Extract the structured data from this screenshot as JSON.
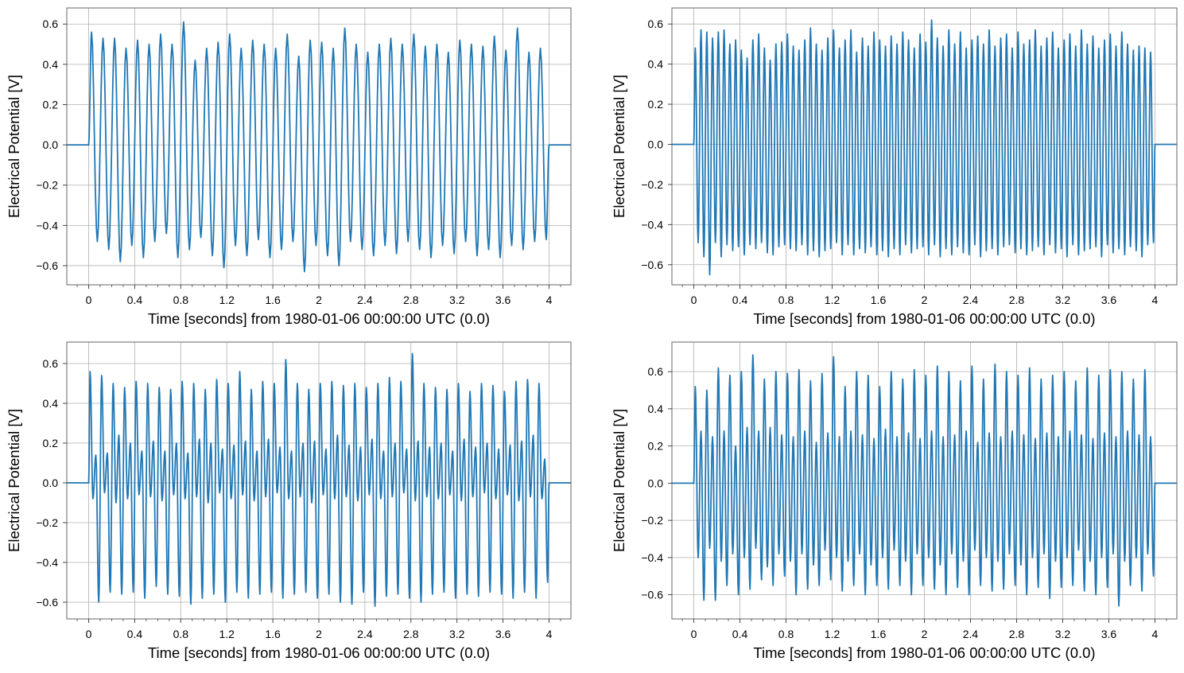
{
  "chart_data": [
    {
      "type": "line",
      "xlabel": "Time [seconds] from 1980-01-06 00:00:00 UTC (0.0)",
      "ylabel": "Electrical Potential [V]",
      "xlim": [
        -0.19,
        4.19
      ],
      "ylim": [
        -0.695,
        0.68
      ],
      "grid": true,
      "line_color": "#1f77b4",
      "xticks": [
        0,
        0.4,
        0.8,
        1.2,
        1.6,
        2,
        2.4,
        2.8,
        3.2,
        3.6,
        4
      ],
      "xtick_labels": [
        "0",
        "0.4",
        "0.8",
        "1.2",
        "1.6",
        "2",
        "2.4",
        "2.8",
        "3.2",
        "3.6",
        "4"
      ],
      "yticks": [
        -0.6,
        -0.4,
        -0.2,
        0,
        0.2,
        0.4,
        0.6
      ],
      "ytick_labels": [
        "−0.6",
        "−0.4",
        "−0.2",
        "0.0",
        "0.2",
        "0.4",
        "0.6"
      ],
      "signal": {
        "baseline": 0,
        "start": 0,
        "end": 4,
        "t0": 0.025,
        "dt": 0.05,
        "extrema": [
          0.56,
          -0.48,
          0.53,
          -0.52,
          0.53,
          -0.58,
          0.48,
          -0.5,
          0.52,
          -0.56,
          0.5,
          -0.48,
          0.55,
          -0.44,
          0.5,
          -0.56,
          0.61,
          -0.52,
          0.42,
          -0.46,
          0.48,
          -0.55,
          0.51,
          -0.61,
          0.55,
          -0.5,
          0.48,
          -0.55,
          0.52,
          -0.47,
          0.5,
          -0.56,
          0.48,
          -0.52,
          0.55,
          -0.48,
          0.44,
          -0.63,
          0.52,
          -0.5,
          0.51,
          -0.55,
          0.48,
          -0.6,
          0.58,
          -0.48,
          0.5,
          -0.52,
          0.46,
          -0.55,
          0.5,
          -0.5,
          0.53,
          -0.54,
          0.5,
          -0.48,
          0.55,
          -0.52,
          0.49,
          -0.56,
          0.5,
          -0.5,
          0.46,
          -0.54,
          0.52,
          -0.48,
          0.5,
          -0.55,
          0.49,
          -0.52,
          0.54,
          -0.56,
          0.47,
          -0.5,
          0.58,
          -0.52,
          0.46,
          -0.48,
          0.48,
          -0.47
        ]
      }
    },
    {
      "type": "line",
      "xlabel": "Time [seconds] from 1980-01-06 00:00:00 UTC (0.0)",
      "ylabel": "Electrical Potential [V]",
      "xlim": [
        -0.19,
        4.19
      ],
      "ylim": [
        -0.7,
        0.68
      ],
      "grid": true,
      "line_color": "#1f77b4",
      "xticks": [
        0,
        0.4,
        0.8,
        1.2,
        1.6,
        2,
        2.4,
        2.8,
        3.2,
        3.6,
        4
      ],
      "xtick_labels": [
        "0",
        "0.4",
        "0.8",
        "1.2",
        "1.6",
        "2",
        "2.4",
        "2.8",
        "3.2",
        "3.6",
        "4"
      ],
      "yticks": [
        -0.6,
        -0.4,
        -0.2,
        0,
        0.2,
        0.4,
        0.6
      ],
      "ytick_labels": [
        "−0.6",
        "−0.4",
        "−0.2",
        "0.0",
        "0.2",
        "0.4",
        "0.6"
      ],
      "signal": {
        "baseline": 0,
        "start": 0,
        "end": 4,
        "t0": 0.0125,
        "dt": 0.025,
        "extrema": [
          0.48,
          -0.49,
          0.57,
          -0.56,
          0.56,
          -0.65,
          0.53,
          -0.49,
          0.56,
          -0.56,
          0.57,
          -0.5,
          0.5,
          -0.53,
          0.52,
          -0.51,
          0.47,
          -0.55,
          0.43,
          -0.5,
          0.52,
          -0.52,
          0.55,
          -0.49,
          0.48,
          -0.54,
          0.42,
          -0.55,
          0.5,
          -0.51,
          0.51,
          -0.5,
          0.55,
          -0.52,
          0.49,
          -0.53,
          0.47,
          -0.5,
          0.52,
          -0.55,
          0.58,
          -0.53,
          0.5,
          -0.56,
          0.47,
          -0.53,
          0.53,
          -0.52,
          0.57,
          -0.49,
          0.48,
          -0.55,
          0.52,
          -0.5,
          0.57,
          -0.55,
          0.46,
          -0.52,
          0.53,
          -0.54,
          0.49,
          -0.51,
          0.56,
          -0.55,
          0.52,
          -0.53,
          0.49,
          -0.56,
          0.54,
          -0.52,
          0.5,
          -0.55,
          0.56,
          -0.5,
          0.52,
          -0.54,
          0.48,
          -0.52,
          0.55,
          -0.51,
          0.51,
          -0.55,
          0.62,
          -0.5,
          0.53,
          -0.56,
          0.49,
          -0.52,
          0.57,
          -0.55,
          0.5,
          -0.51,
          0.56,
          -0.54,
          0.48,
          -0.55,
          0.52,
          -0.5,
          0.54,
          -0.56,
          0.5,
          -0.53,
          0.57,
          -0.52,
          0.49,
          -0.55,
          0.53,
          -0.51,
          0.55,
          -0.5,
          0.48,
          -0.54,
          0.56,
          -0.52,
          0.5,
          -0.55,
          0.52,
          -0.53,
          0.57,
          -0.51,
          0.49,
          -0.55,
          0.53,
          -0.5,
          0.56,
          -0.54,
          0.48,
          -0.52,
          0.52,
          -0.56,
          0.55,
          -0.5,
          0.49,
          -0.55,
          0.57,
          -0.53,
          0.5,
          -0.52,
          0.54,
          -0.51,
          0.48,
          -0.56,
          0.52,
          -0.5,
          0.55,
          -0.54,
          0.49,
          -0.52,
          0.56,
          -0.55,
          0.5,
          -0.51,
          0.47,
          -0.53,
          0.49,
          -0.56,
          0.48,
          -0.5,
          0.46,
          -0.49
        ]
      }
    },
    {
      "type": "line",
      "xlabel": "Time [seconds] from 1980-01-06 00:00:00 UTC (0.0)",
      "ylabel": "Electrical Potential [V]",
      "xlim": [
        -0.19,
        4.19
      ],
      "ylim": [
        -0.684,
        0.708
      ],
      "grid": true,
      "line_color": "#1f77b4",
      "xticks": [
        0,
        0.4,
        0.8,
        1.2,
        1.6,
        2,
        2.4,
        2.8,
        3.2,
        3.6,
        4
      ],
      "xtick_labels": [
        "0",
        "0.4",
        "0.8",
        "1.2",
        "1.6",
        "2",
        "2.4",
        "2.8",
        "3.2",
        "3.6",
        "4"
      ],
      "yticks": [
        -0.6,
        -0.4,
        -0.2,
        0,
        0.2,
        0.4,
        0.6
      ],
      "ytick_labels": [
        "−0.6",
        "−0.4",
        "−0.2",
        "0.0",
        "0.2",
        "0.4",
        "0.6"
      ],
      "signal": {
        "baseline": 0,
        "start": 0,
        "end": 4,
        "t0": 0.0125,
        "dt": 0.025,
        "extrema": [
          0.56,
          -0.08,
          0.14,
          -0.6,
          0.54,
          -0.05,
          0.15,
          -0.55,
          0.5,
          -0.1,
          0.24,
          -0.56,
          0.48,
          -0.08,
          0.2,
          -0.55,
          0.51,
          -0.06,
          0.16,
          -0.58,
          0.5,
          -0.07,
          0.21,
          -0.52,
          0.48,
          -0.09,
          0.16,
          -0.56,
          0.47,
          -0.06,
          0.2,
          -0.57,
          0.51,
          -0.08,
          0.15,
          -0.61,
          0.5,
          -0.07,
          0.22,
          -0.58,
          0.47,
          -0.1,
          0.2,
          -0.56,
          0.52,
          -0.05,
          0.17,
          -0.6,
          0.5,
          -0.08,
          0.19,
          -0.55,
          0.56,
          -0.06,
          0.21,
          -0.58,
          0.47,
          -0.09,
          0.16,
          -0.56,
          0.51,
          -0.07,
          0.22,
          -0.55,
          0.5,
          -0.05,
          0.18,
          -0.58,
          0.62,
          -0.08,
          0.16,
          -0.56,
          0.5,
          -0.07,
          0.2,
          -0.55,
          0.47,
          -0.1,
          0.21,
          -0.58,
          0.5,
          -0.06,
          0.17,
          -0.56,
          0.51,
          -0.08,
          0.24,
          -0.6,
          0.49,
          -0.07,
          0.19,
          -0.61,
          0.5,
          -0.09,
          0.18,
          -0.55,
          0.48,
          -0.06,
          0.22,
          -0.62,
          0.5,
          -0.08,
          0.16,
          -0.57,
          0.53,
          -0.07,
          0.2,
          -0.56,
          0.51,
          -0.05,
          0.17,
          -0.58,
          0.65,
          -0.09,
          0.21,
          -0.6,
          0.5,
          -0.07,
          0.18,
          -0.56,
          0.48,
          -0.08,
          0.2,
          -0.55,
          0.47,
          -0.06,
          0.16,
          -0.58,
          0.5,
          -0.09,
          0.22,
          -0.56,
          0.46,
          -0.07,
          0.18,
          -0.57,
          0.5,
          -0.05,
          0.2,
          -0.55,
          0.49,
          -0.08,
          0.17,
          -0.56,
          0.46,
          -0.06,
          0.19,
          -0.58,
          0.51,
          -0.09,
          0.21,
          -0.55,
          0.52,
          -0.07,
          0.24,
          -0.58,
          0.5,
          -0.08,
          0.12,
          -0.5
        ]
      }
    },
    {
      "type": "line",
      "xlabel": "Time [seconds] from 1980-01-06 00:00:00 UTC (0.0)",
      "ylabel": "Electrical Potential [V]",
      "xlim": [
        -0.19,
        4.19
      ],
      "ylim": [
        -0.73,
        0.759
      ],
      "grid": true,
      "line_color": "#1f77b4",
      "xticks": [
        0,
        0.4,
        0.8,
        1.2,
        1.6,
        2,
        2.4,
        2.8,
        3.2,
        3.6,
        4
      ],
      "xtick_labels": [
        "0",
        "0.4",
        "0.8",
        "1.2",
        "1.6",
        "2",
        "2.4",
        "2.8",
        "3.2",
        "3.6",
        "4"
      ],
      "yticks": [
        -0.6,
        -0.4,
        -0.2,
        0,
        0.2,
        0.4,
        0.6
      ],
      "ytick_labels": [
        "−0.6",
        "−0.4",
        "−0.2",
        "0.0",
        "0.2",
        "0.4",
        "0.6"
      ],
      "signal": {
        "baseline": 0,
        "start": 0,
        "end": 4,
        "t0": 0.0125,
        "dt": 0.025,
        "extrema": [
          0.52,
          -0.4,
          0.28,
          -0.63,
          0.5,
          -0.35,
          0.25,
          -0.63,
          0.62,
          -0.42,
          0.28,
          -0.55,
          0.58,
          -0.38,
          0.2,
          -0.6,
          0.6,
          -0.4,
          0.3,
          -0.57,
          0.69,
          -0.35,
          0.28,
          -0.52,
          0.56,
          -0.45,
          0.3,
          -0.55,
          0.6,
          -0.38,
          0.26,
          -0.5,
          0.59,
          -0.42,
          0.25,
          -0.6,
          0.61,
          -0.38,
          0.28,
          -0.57,
          0.55,
          -0.44,
          0.22,
          -0.55,
          0.59,
          -0.36,
          0.27,
          -0.52,
          0.68,
          -0.4,
          0.25,
          -0.58,
          0.52,
          -0.42,
          0.28,
          -0.55,
          0.6,
          -0.38,
          0.26,
          -0.6,
          0.58,
          -0.44,
          0.24,
          -0.55,
          0.52,
          -0.4,
          0.29,
          -0.57,
          0.6,
          -0.36,
          0.25,
          -0.55,
          0.56,
          -0.42,
          0.27,
          -0.6,
          0.61,
          -0.38,
          0.24,
          -0.55,
          0.58,
          -0.4,
          0.28,
          -0.57,
          0.63,
          -0.44,
          0.25,
          -0.6,
          0.6,
          -0.38,
          0.26,
          -0.56,
          0.55,
          -0.42,
          0.28,
          -0.6,
          0.63,
          -0.36,
          0.22,
          -0.55,
          0.56,
          -0.4,
          0.27,
          -0.58,
          0.64,
          -0.42,
          0.25,
          -0.57,
          0.6,
          -0.38,
          0.28,
          -0.55,
          0.58,
          -0.44,
          0.26,
          -0.6,
          0.62,
          -0.4,
          0.24,
          -0.56,
          0.56,
          -0.38,
          0.27,
          -0.62,
          0.58,
          -0.42,
          0.25,
          -0.56,
          0.6,
          -0.4,
          0.28,
          -0.55,
          0.55,
          -0.36,
          0.26,
          -0.58,
          0.62,
          -0.42,
          0.24,
          -0.6,
          0.58,
          -0.4,
          0.27,
          -0.56,
          0.61,
          -0.38,
          0.25,
          -0.66,
          0.6,
          -0.42,
          0.28,
          -0.55,
          0.56,
          -0.4,
          0.26,
          -0.58,
          0.61,
          -0.38,
          0.25,
          -0.5
        ]
      }
    }
  ]
}
